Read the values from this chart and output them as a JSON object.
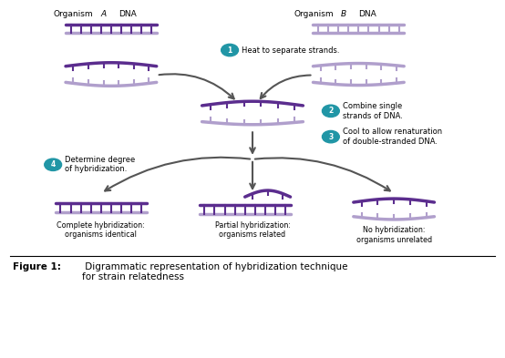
{
  "title_bold": "Figure 1:",
  "title_normal": " Digrammatic representation of hybridization technique\nfor strain relatedness",
  "org_a_label": "Organism A DNA",
  "org_b_label": "Organism B DNA",
  "step1_label": "Heat to separate strands.",
  "step2_label": "Combine single\nstrands of DNA.",
  "step3_label": "Cool to allow renaturation\nof double-stranded DNA.",
  "step4_label": "Determine degree\nof hybridization.",
  "bottom_label1": "Complete hybridization:\norganisms identical",
  "bottom_label2": "Partial hybridization:\norganisms related",
  "bottom_label3": "No hybridization:\norganisms unrelated",
  "purple_dark": "#5b2d8e",
  "purple_light": "#b09fcc",
  "teal_circle": "#2196a6",
  "arrow_color": "#555555",
  "border_color": "#cccccc",
  "bg_color": "#ffffff",
  "fig_width": 5.54,
  "fig_height": 3.93
}
